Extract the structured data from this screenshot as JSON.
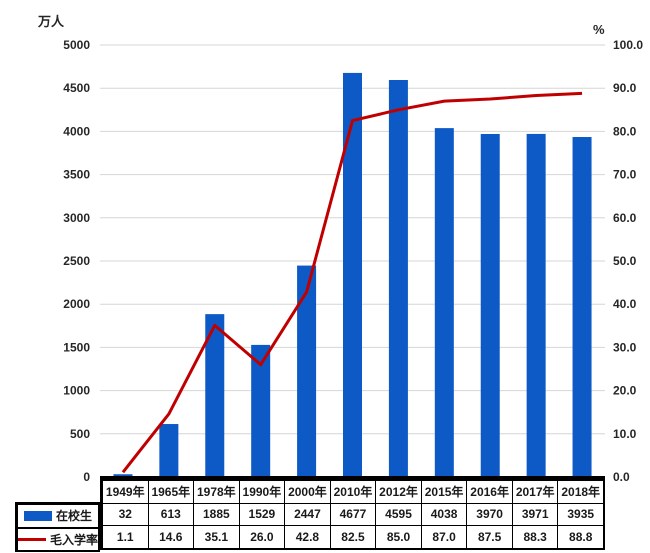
{
  "chart_data": {
    "type": "combo",
    "title": "",
    "categories": [
      "1949年",
      "1965年",
      "1978年",
      "1990年",
      "2000年",
      "2010年",
      "2012年",
      "2015年",
      "2016年",
      "2017年",
      "2018年"
    ],
    "series": [
      {
        "name": "在校生",
        "type": "bar",
        "axis": "left",
        "color": "#0D59C5",
        "value_decimals": 0,
        "values": [
          32,
          613,
          1885,
          1529,
          2447,
          4677,
          4595,
          4038,
          3970,
          3971,
          3935
        ]
      },
      {
        "name": "毛入学率",
        "type": "line",
        "axis": "right",
        "color": "#C00000",
        "value_decimals": 1,
        "values": [
          1.1,
          14.6,
          35.1,
          26.0,
          42.8,
          82.5,
          85.0,
          87.0,
          87.5,
          88.3,
          88.8
        ]
      }
    ],
    "left_axis": {
      "unit_label": "万人",
      "min": 0,
      "max": 5000,
      "step": 500,
      "tick_decimals": 0
    },
    "right_axis": {
      "unit_label": "%",
      "min": 0,
      "max": 100,
      "step": 10,
      "tick_decimals": 1
    },
    "grid": true,
    "gridline_color": "#D6D6D6",
    "axis_line_color": "#000000",
    "tick_label_color": "#262626",
    "legend_position": "table-row-headers"
  }
}
